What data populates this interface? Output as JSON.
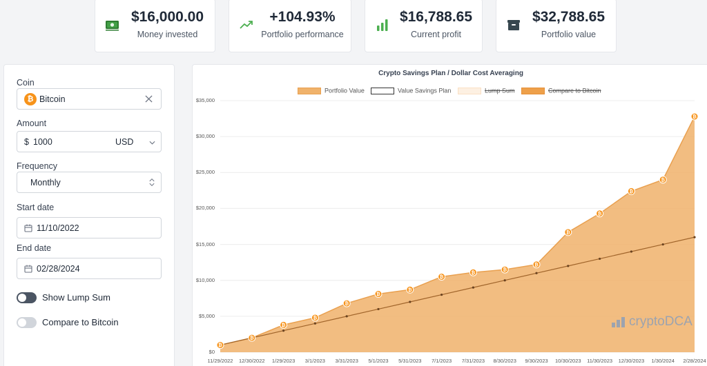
{
  "stats": [
    {
      "value": "$16,000.00",
      "label": "Money invested",
      "icon": "money-icon"
    },
    {
      "value": "+104.93%",
      "label": "Portfolio performance",
      "icon": "trending-up-icon"
    },
    {
      "value": "$16,788.65",
      "label": "Current profit",
      "icon": "bar-chart-icon"
    },
    {
      "value": "$32,788.65",
      "label": "Portfolio value",
      "icon": "wallet-icon"
    }
  ],
  "form": {
    "coin_label": "Coin",
    "coin_value": "Bitcoin",
    "coin_glyph": "₿",
    "amount_label": "Amount",
    "amount_prefix": "$",
    "amount_value": "1000",
    "currency_value": "USD",
    "frequency_label": "Frequency",
    "frequency_value": "Monthly",
    "start_label": "Start date",
    "start_value": "11/10/2022",
    "end_label": "End date",
    "end_value": "02/28/2024",
    "toggle_lump_label": "Show Lump Sum",
    "toggle_compare_label": "Compare to Bitcoin",
    "toggle_lump_on": false,
    "toggle_compare_on": false
  },
  "colors": {
    "accent": "#f7931a",
    "area_fill": "#f0b26b",
    "area_line": "#e9a04f",
    "savings_line": "#a0642a",
    "card_bg": "#ffffff",
    "page_bg": "#f3f4f6",
    "money_icon": "#2e7d32",
    "trend_icon": "#4caf50",
    "bar_icon": "#4caf50",
    "wallet_icon": "#37474f"
  },
  "watermark": "cryptoDCA",
  "chart_data": {
    "type": "area",
    "title": "Crypto Savings Plan / Dollar Cost Averaging",
    "x": [
      "11/29/2022",
      "12/30/2022",
      "1/29/2023",
      "3/1/2023",
      "3/31/2023",
      "5/1/2023",
      "5/31/2023",
      "7/1/2023",
      "7/31/2023",
      "8/30/2023",
      "9/30/2023",
      "10/30/2023",
      "11/30/2023",
      "12/30/2023",
      "1/30/2024",
      "2/28/2024"
    ],
    "series": [
      {
        "name": "Portfolio Value",
        "values": [
          1000,
          2000,
          3800,
          4800,
          6800,
          8100,
          8700,
          10500,
          11100,
          11500,
          12200,
          16700,
          19300,
          22400,
          24000,
          32788.65
        ]
      },
      {
        "name": "Value Savings Plan",
        "values": [
          1000,
          2000,
          3000,
          4000,
          5000,
          6000,
          7000,
          8000,
          9000,
          10000,
          11000,
          12000,
          13000,
          14000,
          15000,
          16000
        ]
      }
    ],
    "legend": [
      {
        "name": "Portfolio Value",
        "hidden": false
      },
      {
        "name": "Value Savings Plan",
        "hidden": false
      },
      {
        "name": "Lump Sum",
        "hidden": true
      },
      {
        "name": "Compare to Bitcoin",
        "hidden": true
      }
    ],
    "yticks": [
      "$35,000",
      "$30,000",
      "$25,000",
      "$20,000",
      "$15,000",
      "$10,000",
      "$5,000",
      "$0"
    ],
    "ylim": [
      0,
      35000
    ],
    "legend_position": "top",
    "grid": true
  }
}
